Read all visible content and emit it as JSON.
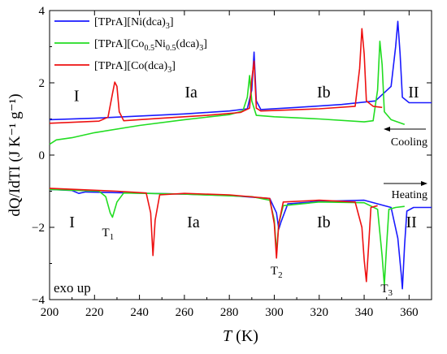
{
  "chart_data": {
    "type": "line",
    "xlabel_italic": "T",
    "xlabel_unit": " (K)",
    "ylabel": "dQ/IdTI (J K⁻¹ g⁻¹)",
    "xlim": [
      200,
      370
    ],
    "ylim": [
      -4,
      4
    ],
    "x_ticks": [
      200,
      220,
      240,
      260,
      280,
      300,
      320,
      340,
      360
    ],
    "y_ticks": [
      -4,
      -2,
      0,
      2,
      4
    ],
    "legend_position": "top-left",
    "series": [
      {
        "name": "[TPrA][Ni(dca)3]",
        "legend_parts": [
          [
            "[TPrA][Ni(dca)",
            ""
          ],
          [
            "3",
            "sub"
          ],
          [
            "]",
            ""
          ]
        ],
        "color": "#1a1aff",
        "cooling": [
          [
            200,
            0.98
          ],
          [
            220,
            1.02
          ],
          [
            240,
            1.08
          ],
          [
            260,
            1.14
          ],
          [
            280,
            1.22
          ],
          [
            288,
            1.28
          ],
          [
            290,
            1.8
          ],
          [
            291,
            2.85
          ],
          [
            292,
            1.5
          ],
          [
            294,
            1.26
          ],
          [
            310,
            1.32
          ],
          [
            330,
            1.4
          ],
          [
            345,
            1.5
          ],
          [
            352,
            1.9
          ],
          [
            354,
            3.0
          ],
          [
            355,
            3.7
          ],
          [
            356,
            2.8
          ],
          [
            357,
            1.6
          ],
          [
            360,
            1.45
          ],
          [
            370,
            1.45
          ]
        ],
        "heating": [
          [
            200,
            -0.95
          ],
          [
            210,
            -0.98
          ],
          [
            213,
            -1.06
          ],
          [
            216,
            -1.02
          ],
          [
            230,
            -1.04
          ],
          [
            260,
            -1.08
          ],
          [
            280,
            -1.12
          ],
          [
            298,
            -1.2
          ],
          [
            301,
            -1.6
          ],
          [
            302,
            -2.05
          ],
          [
            303,
            -1.85
          ],
          [
            306,
            -1.35
          ],
          [
            320,
            -1.28
          ],
          [
            340,
            -1.25
          ],
          [
            352,
            -1.45
          ],
          [
            355,
            -2.3
          ],
          [
            356.5,
            -3.3
          ],
          [
            357,
            -3.7
          ],
          [
            358,
            -2.5
          ],
          [
            359,
            -1.55
          ],
          [
            362,
            -1.45
          ],
          [
            370,
            -1.45
          ]
        ]
      },
      {
        "name": "[TPrA][Co0.5Ni0.5(dca)3]",
        "legend_parts": [
          [
            "[TPrA][Co",
            ""
          ],
          [
            "0.5",
            "sub"
          ],
          [
            "Ni",
            ""
          ],
          [
            "0.5",
            "sub"
          ],
          [
            "(dca)",
            ""
          ],
          [
            "3",
            "sub"
          ],
          [
            "]",
            ""
          ]
        ],
        "color": "#22dd22",
        "cooling": [
          [
            200,
            0.3
          ],
          [
            203,
            0.42
          ],
          [
            210,
            0.48
          ],
          [
            220,
            0.62
          ],
          [
            240,
            0.82
          ],
          [
            260,
            0.98
          ],
          [
            280,
            1.12
          ],
          [
            286,
            1.22
          ],
          [
            288,
            1.6
          ],
          [
            289,
            2.2
          ],
          [
            290,
            1.5
          ],
          [
            292,
            1.1
          ],
          [
            300,
            1.06
          ],
          [
            320,
            1.0
          ],
          [
            340,
            0.92
          ],
          [
            344,
            0.95
          ],
          [
            346,
            1.8
          ],
          [
            347,
            3.15
          ],
          [
            348,
            2.5
          ],
          [
            349,
            1.2
          ],
          [
            352,
            0.98
          ],
          [
            358,
            0.85
          ]
        ],
        "heating": [
          [
            200,
            -0.95
          ],
          [
            222,
            -1.0
          ],
          [
            225,
            -1.15
          ],
          [
            227,
            -1.6
          ],
          [
            228,
            -1.72
          ],
          [
            230,
            -1.3
          ],
          [
            233,
            -1.05
          ],
          [
            260,
            -1.08
          ],
          [
            290,
            -1.15
          ],
          [
            298,
            -1.25
          ],
          [
            300,
            -1.8
          ],
          [
            301,
            -2.7
          ],
          [
            302,
            -1.9
          ],
          [
            304,
            -1.4
          ],
          [
            320,
            -1.3
          ],
          [
            340,
            -1.32
          ],
          [
            346,
            -1.5
          ],
          [
            348,
            -2.8
          ],
          [
            349,
            -3.6
          ],
          [
            350,
            -2.5
          ],
          [
            351,
            -1.5
          ],
          [
            354,
            -1.45
          ],
          [
            358,
            -1.42
          ]
        ]
      },
      {
        "name": "[TPrA][Co(dca)3]",
        "legend_parts": [
          [
            "[TPrA][Co(dca)",
            ""
          ],
          [
            "3",
            "sub"
          ],
          [
            "]",
            ""
          ]
        ],
        "color": "#ee1111",
        "cooling": [
          [
            200,
            0.88
          ],
          [
            222,
            0.94
          ],
          [
            226,
            1.05
          ],
          [
            228,
            1.7
          ],
          [
            229,
            2.02
          ],
          [
            230,
            1.9
          ],
          [
            231,
            1.2
          ],
          [
            233,
            0.95
          ],
          [
            250,
            1.02
          ],
          [
            270,
            1.1
          ],
          [
            285,
            1.18
          ],
          [
            289,
            1.3
          ],
          [
            290,
            2.1
          ],
          [
            291,
            2.6
          ],
          [
            292,
            1.3
          ],
          [
            294,
            1.22
          ],
          [
            320,
            1.28
          ],
          [
            336,
            1.35
          ],
          [
            338,
            2.4
          ],
          [
            339,
            3.5
          ],
          [
            340,
            2.8
          ],
          [
            341,
            1.5
          ],
          [
            344,
            1.35
          ],
          [
            348,
            1.32
          ]
        ],
        "heating": [
          [
            200,
            -0.92
          ],
          [
            230,
            -1.0
          ],
          [
            243,
            -1.05
          ],
          [
            245,
            -1.6
          ],
          [
            246,
            -2.78
          ],
          [
            247,
            -1.8
          ],
          [
            249,
            -1.1
          ],
          [
            260,
            -1.06
          ],
          [
            280,
            -1.1
          ],
          [
            298,
            -1.2
          ],
          [
            300,
            -1.9
          ],
          [
            301,
            -2.85
          ],
          [
            302,
            -1.9
          ],
          [
            304,
            -1.3
          ],
          [
            320,
            -1.25
          ],
          [
            336,
            -1.3
          ],
          [
            339,
            -2.0
          ],
          [
            340,
            -2.9
          ],
          [
            341,
            -3.5
          ],
          [
            342,
            -2.5
          ],
          [
            343,
            -1.45
          ],
          [
            346,
            -1.4
          ]
        ]
      }
    ],
    "annotations": {
      "phase_labels": [
        {
          "text": "I",
          "x": 212,
          "y": 1.5
        },
        {
          "text": "Ia",
          "x": 263,
          "y": 1.6
        },
        {
          "text": "Ib",
          "x": 322,
          "y": 1.6
        },
        {
          "text": "II",
          "x": 362,
          "y": 1.6
        },
        {
          "text": "I",
          "x": 210,
          "y": -2.0
        },
        {
          "text": "Ia",
          "x": 264,
          "y": -2.0
        },
        {
          "text": "Ib",
          "x": 322,
          "y": -2.0
        },
        {
          "text": "II",
          "x": 361,
          "y": -2.0
        }
      ],
      "transition_labels": [
        {
          "base": "T",
          "sub": "1",
          "x": 226,
          "y": -2.25
        },
        {
          "base": "T",
          "sub": "2",
          "x": 301,
          "y": -3.3
        },
        {
          "base": "T",
          "sub": "3",
          "x": 350,
          "y": -3.8
        }
      ],
      "cooling_label": "Cooling",
      "heating_label": "Heating",
      "exo_label": "exo up"
    }
  }
}
